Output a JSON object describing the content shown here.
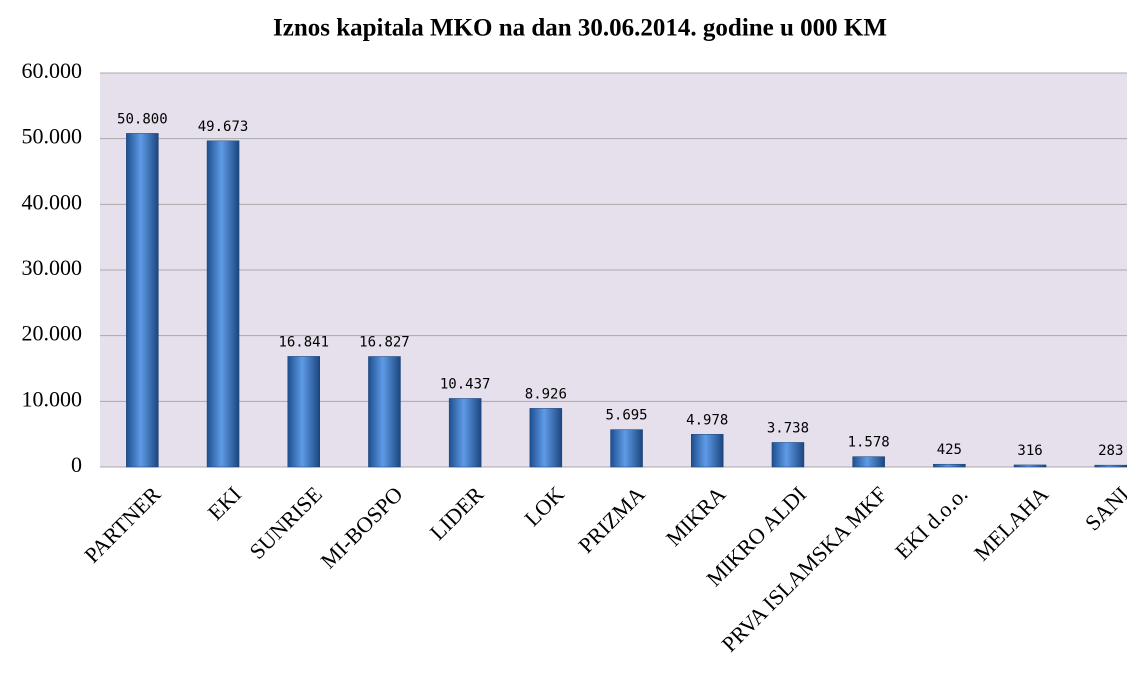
{
  "chart_data": {
    "type": "bar",
    "title": "Iznos kapitala MKO na dan 30.06.2014. godine u 000 KM",
    "categories": [
      "PARTNER",
      "EKI",
      "SUNRISE",
      "MI-BOSPO",
      "LIDER",
      "LOK",
      "PRIZMA",
      "MIKRA",
      "MIKRO ALDI",
      "PRVA ISLAMSKA MKF",
      "EKI d.o.o.",
      "MELAHA",
      "SANI"
    ],
    "values": [
      50800,
      49673,
      16841,
      16827,
      10437,
      8926,
      5695,
      4978,
      3738,
      1578,
      425,
      316,
      283
    ],
    "value_labels": [
      "50.800",
      "49.673",
      "16.841",
      "16.827",
      "10.437",
      "8.926",
      "5.695",
      "4.978",
      "3.738",
      "1.578",
      "425",
      "316",
      "283"
    ],
    "color": "#3a78c8",
    "ylim": [
      0,
      60000
    ],
    "yticks": [
      0,
      {
        "value": 10000,
        "label": "10.000"
      },
      {
        "value": 20000,
        "label": "20.000"
      },
      {
        "value": 30000,
        "label": "30.000"
      },
      {
        "value": 40000,
        "label": "40.000"
      },
      {
        "value": 50000,
        "label": "50.000"
      },
      {
        "value": 60000,
        "label": "60.000"
      }
    ],
    "grid": true
  }
}
